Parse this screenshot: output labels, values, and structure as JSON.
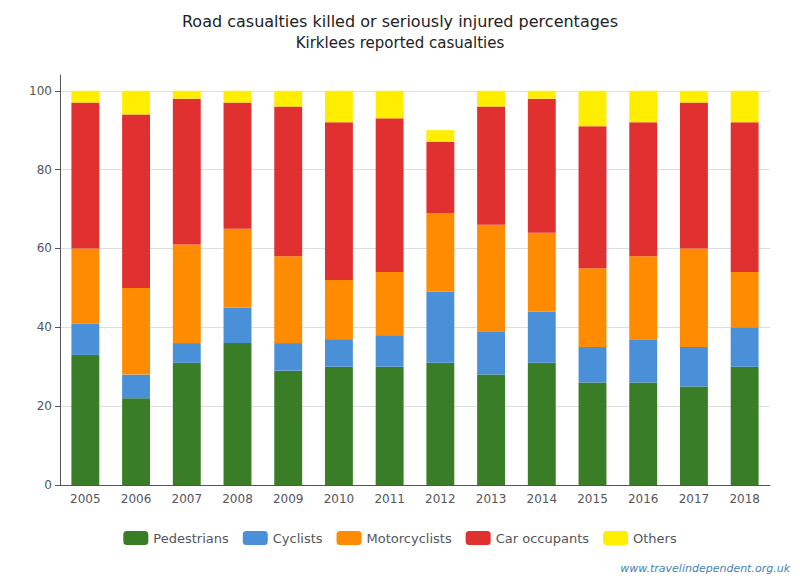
{
  "chart_data": {
    "type": "bar",
    "title": "Road casualties killed or seriously injured percentages",
    "subtitle": "Kirklees reported casualties",
    "categories": [
      "2005",
      "2006",
      "2007",
      "2008",
      "2009",
      "2010",
      "2011",
      "2012",
      "2013",
      "2014",
      "2015",
      "2016",
      "2017",
      "2018"
    ],
    "series": [
      {
        "name": "Pedestrians",
        "color": "#3a7d27",
        "values": [
          33,
          22,
          31,
          36,
          29,
          30,
          30,
          31,
          28,
          31,
          26,
          26,
          25,
          30
        ]
      },
      {
        "name": "Cyclists",
        "color": "#4a90d9",
        "values": [
          8,
          6,
          5,
          9,
          7,
          7,
          8,
          18,
          11,
          13,
          9,
          11,
          10,
          10
        ]
      },
      {
        "name": "Motorcyclists",
        "color": "#ff8c00",
        "values": [
          19,
          22,
          25,
          20,
          22,
          15,
          16,
          20,
          27,
          20,
          20,
          21,
          25,
          14
        ]
      },
      {
        "name": "Car occupants",
        "color": "#e03030",
        "values": [
          37,
          44,
          37,
          32,
          38,
          40,
          39,
          18,
          30,
          34,
          36,
          34,
          37,
          38
        ]
      },
      {
        "name": "Others",
        "color": "#ffee00",
        "values": [
          3,
          6,
          2,
          3,
          4,
          8,
          7,
          3,
          4,
          2,
          9,
          8,
          3,
          8
        ]
      }
    ],
    "stacked": true,
    "ylim": [
      0,
      104
    ],
    "yticks": [
      0,
      20,
      40,
      60,
      80,
      100
    ],
    "grid": true,
    "legend": "bottom",
    "annotations": [
      "www.travelindependent.org.uk"
    ]
  }
}
